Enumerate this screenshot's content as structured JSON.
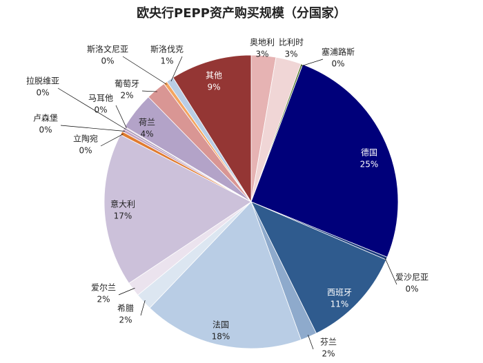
{
  "chart_data": {
    "type": "pie",
    "title": "欧央行PEPP资产购买规模（分国家）",
    "categories": [
      "奥地利",
      "比利时",
      "塞浦路斯",
      "德国",
      "爱沙尼亚",
      "西班牙",
      "芬兰",
      "法国",
      "希腊",
      "爱尔兰",
      "意大利",
      "立陶宛",
      "卢森堡",
      "拉脱维亚",
      "马耳他",
      "荷兰",
      "葡萄牙",
      "斯洛文尼亚",
      "斯洛伐克",
      "其他"
    ],
    "values": [
      2.7,
      2.8,
      0.2,
      25.4,
      0.3,
      11.2,
      1.8,
      17.6,
      1.9,
      1.6,
      16.9,
      0.4,
      0.3,
      0.2,
      0.1,
      4.1,
      2.2,
      0.4,
      0.8,
      8.9
    ],
    "value_labels": [
      "3%",
      "3%",
      "0%",
      "25%",
      "0%",
      "11%",
      "2%",
      "18%",
      "2%",
      "2%",
      "17%",
      "0%",
      "0%",
      "0%",
      "0%",
      "4%",
      "2%",
      "0%",
      "1%",
      "9%"
    ],
    "colors": [
      "#e6b3b3",
      "#f0d6d6",
      "#5f7f3a",
      "#00007a",
      "#1c3c7e",
      "#2f5b8e",
      "#8eaacc",
      "#b9cde5",
      "#dce6f1",
      "#ebe3ee",
      "#ccc1da",
      "#e07b30",
      "#c2a3c2",
      "#a593b5",
      "#d2b3ca",
      "#b3a3c8",
      "#d99694",
      "#f4a460",
      "#b9cde5",
      "#943634"
    ]
  }
}
